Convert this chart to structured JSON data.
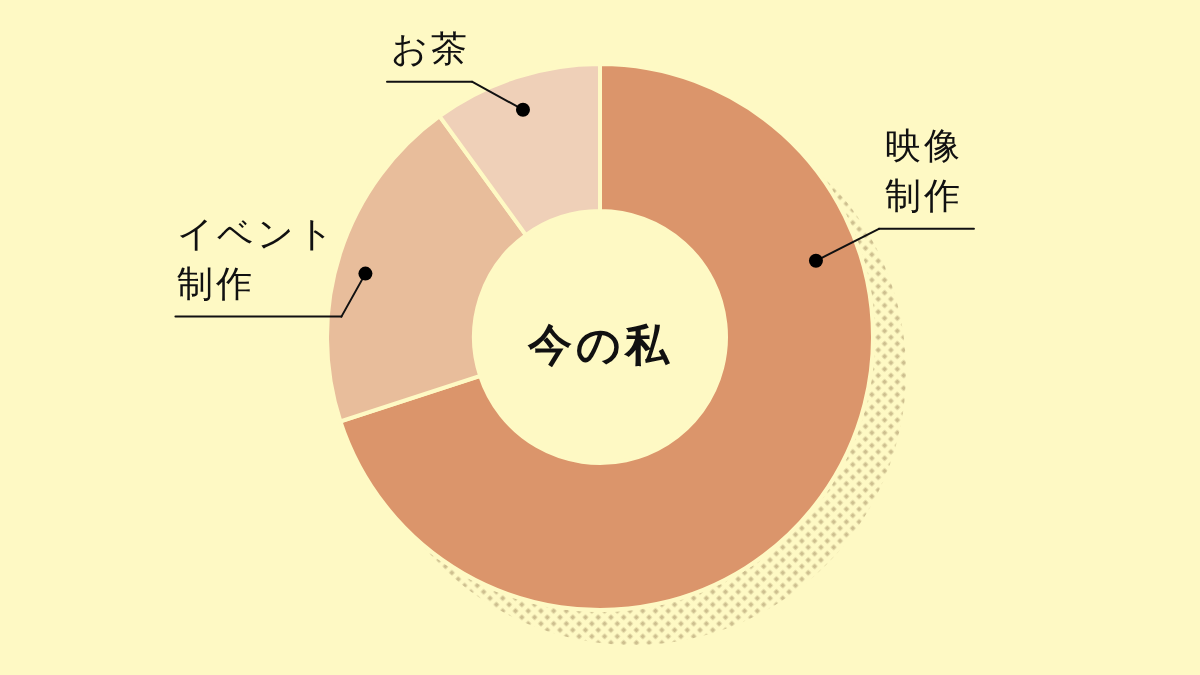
{
  "chart_data": {
    "type": "donut",
    "title": "今の私",
    "categories": [
      "映像制作",
      "イベント制作",
      "お茶"
    ],
    "values": [
      70,
      20,
      10
    ],
    "colors": [
      "#db956b",
      "#e8bd9b",
      "#efd0b8"
    ]
  }
}
